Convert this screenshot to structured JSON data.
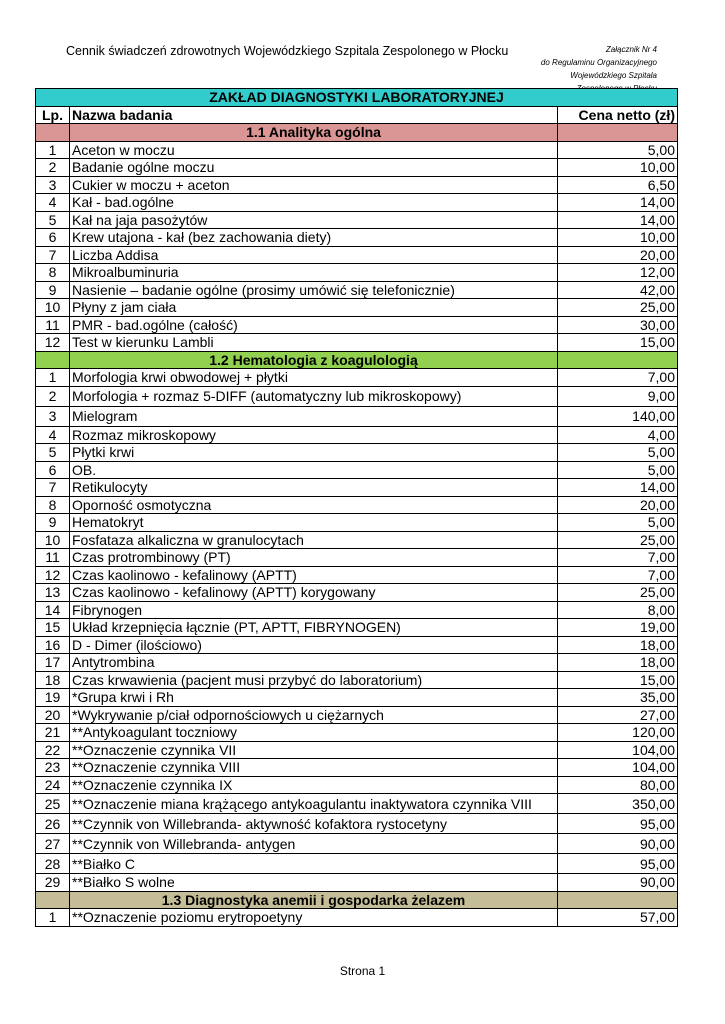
{
  "header": {
    "title": "Cennik świadczeń zdrowotnych Wojewódzkiego Szpitala Zespolonego w Płocku",
    "attachment": [
      "Załącznik Nr 4",
      "do Regulaminu Organizacyjnego",
      "Wojewódzkiego Szpitala",
      "Zespolonego w Płocku"
    ]
  },
  "table": {
    "title": "ZAKŁAD DIAGNOSTYKI LABORATORYJNEJ",
    "col_lp": "Lp.",
    "col_name": "Nazwa badania",
    "col_price": "Cena netto (zł)",
    "sections": [
      {
        "title": "1.1  Analityka ogólna",
        "color": "#da9694",
        "rows": [
          [
            "1",
            "Aceton w moczu",
            "5,00"
          ],
          [
            "2",
            "Badanie ogólne moczu",
            "10,00"
          ],
          [
            "3",
            "Cukier w moczu + aceton",
            "6,50"
          ],
          [
            "4",
            "Kał - bad.ogólne",
            "14,00"
          ],
          [
            "5",
            "Kał na jaja pasożytów",
            "14,00"
          ],
          [
            "6",
            "Krew utajona - kał (bez zachowania diety)",
            "10,00"
          ],
          [
            "7",
            "Liczba Addisa",
            "20,00"
          ],
          [
            "8",
            "Mikroalbuminuria",
            "12,00"
          ],
          [
            "9",
            "Nasienie – badanie ogólne (prosimy umówić się telefonicznie)",
            "42,00"
          ],
          [
            "10",
            "Płyny z jam ciała",
            "25,00"
          ],
          [
            "11",
            "PMR - bad.ogólne (całość)",
            "30,00"
          ],
          [
            "12",
            "Test w kierunku Lambli",
            "15,00"
          ]
        ]
      },
      {
        "title": "1.2  Hematologia z koagulologią",
        "color": "#92d050",
        "rows": [
          [
            "1",
            "Morfologia krwi obwodowej + płytki",
            "7,00"
          ],
          [
            "2",
            "Morfologia + rozmaz 5-DIFF  (automatyczny lub mikroskopowy)",
            "9,00"
          ],
          [
            "3",
            "Mielogram",
            "140,00"
          ],
          [
            "4",
            "Rozmaz mikroskopowy",
            "4,00"
          ],
          [
            "5",
            "Płytki krwi",
            "5,00"
          ],
          [
            "6",
            "OB.",
            "5,00"
          ],
          [
            "7",
            "Retikulocyty",
            "14,00"
          ],
          [
            "8",
            "Oporność osmotyczna",
            "20,00"
          ],
          [
            "9",
            "Hematokryt",
            "5,00"
          ],
          [
            "10",
            "Fosfataza alkaliczna w granulocytach",
            "25,00"
          ],
          [
            "11",
            "Czas protrombinowy (PT)",
            "7,00"
          ],
          [
            "12",
            "Czas kaolinowo - kefalinowy (APTT)",
            "7,00"
          ],
          [
            "13",
            "Czas kaolinowo - kefalinowy (APTT) korygowany",
            "25,00"
          ],
          [
            "14",
            "Fibrynogen",
            "8,00"
          ],
          [
            "15",
            "Układ krzepnięcia łącznie (PT, APTT, FIBRYNOGEN)",
            "19,00"
          ],
          [
            "16",
            "D - Dimer (ilościowo)",
            "18,00"
          ],
          [
            "17",
            "Antytrombina",
            "18,00"
          ],
          [
            "18",
            "Czas krwawienia (pacjent musi przybyć do laboratorium)",
            "15,00"
          ],
          [
            "19",
            "*Grupa krwi i Rh",
            "35,00"
          ],
          [
            "20",
            "*Wykrywanie p/ciał odpornościowych u ciężarnych",
            "27,00"
          ],
          [
            "21",
            "**Antykoagulant toczniowy",
            "120,00"
          ],
          [
            "22",
            "**Oznaczenie czynnika VII",
            "104,00"
          ],
          [
            "23",
            "**Oznaczenie czynnika VIII",
            "104,00"
          ],
          [
            "24",
            "**Oznaczenie czynnika IX",
            "80,00"
          ],
          [
            "25",
            "**Oznaczenie miana krążącego antykoagulantu inaktywatora czynnika VIII",
            "350,00"
          ],
          [
            "26",
            "**Czynnik von Willebranda- aktywność kofaktora rystocetyny",
            "95,00"
          ],
          [
            "27",
            "**Czynnik von Willebranda- antygen",
            "90,00"
          ],
          [
            "28",
            "**Białko C",
            "95,00"
          ],
          [
            "29",
            "**Białko S wolne",
            "90,00"
          ]
        ]
      },
      {
        "title": "1.3  Diagnostyka anemii i gospodarka żelazem",
        "color": "#c4bd97",
        "rows": [
          [
            "1",
            "**Oznaczenie poziomu erytropoetyny",
            "57,00"
          ]
        ]
      }
    ]
  },
  "footer": {
    "page": "Strona 1"
  }
}
